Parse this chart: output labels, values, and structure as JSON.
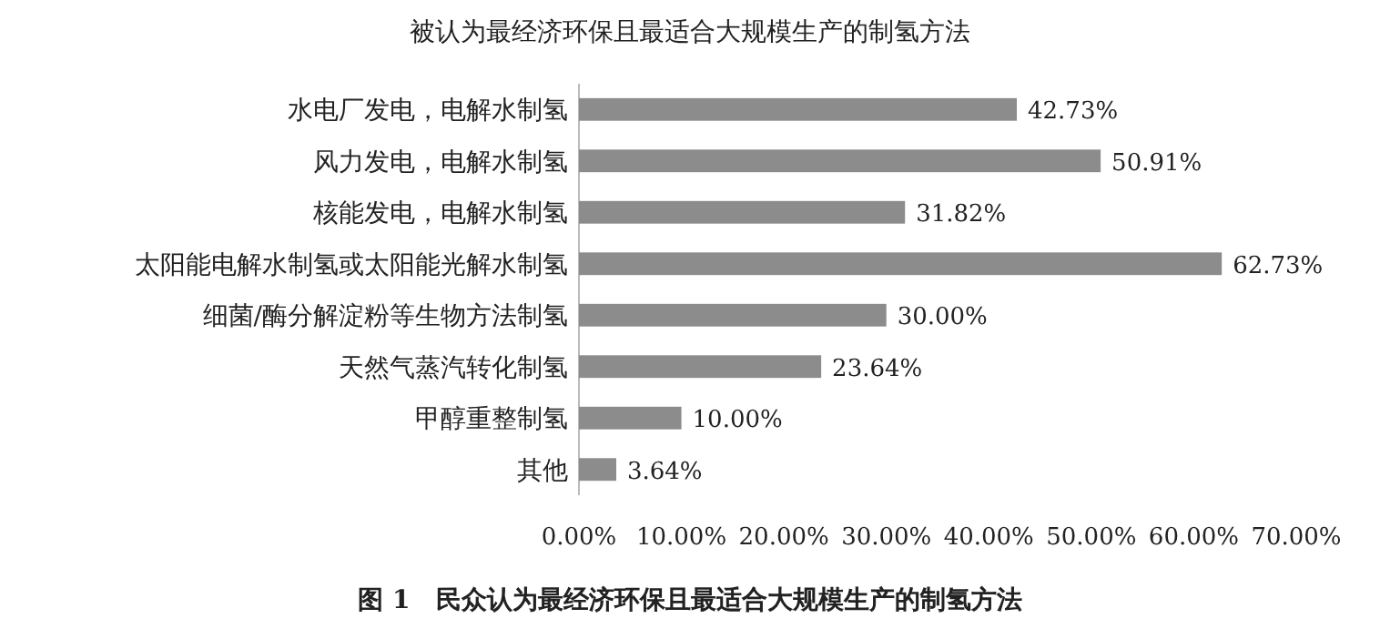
{
  "chart_data": {
    "type": "bar",
    "orientation": "horizontal",
    "title": "被认为最经济环保且最适合大规模生产的制氢方法",
    "categories": [
      "水电厂发电，电解水制氢",
      "风力发电，电解水制氢",
      "核能发电，电解水制氢",
      "太阳能电解水制氢或太阳能光解水制氢",
      "细菌/酶分解淀粉等生物方法制氢",
      "天然气蒸汽转化制氢",
      "甲醇重整制氢",
      "其他"
    ],
    "values": [
      42.73,
      50.91,
      31.82,
      62.73,
      30.0,
      23.64,
      10.0,
      3.64
    ],
    "value_labels": [
      "42.73%",
      "50.91%",
      "31.82%",
      "62.73%",
      "30.00%",
      "23.64%",
      "10.00%",
      "3.64%"
    ],
    "color": "#8c8c8c",
    "xlim": [
      0,
      70
    ],
    "xticks": [
      {
        "value": 0,
        "label": "0.00%"
      },
      {
        "value": 10,
        "label": "10.00%"
      },
      {
        "value": 20,
        "label": "20.00%"
      },
      {
        "value": 30,
        "label": "30.00%"
      },
      {
        "value": 40,
        "label": "40.00%"
      },
      {
        "value": 50,
        "label": "50.00%"
      },
      {
        "value": 60,
        "label": "60.00%"
      },
      {
        "value": 70,
        "label": "70.00%"
      }
    ],
    "annotations": [
      "图 1　民众认为最经济环保且最适合大规模生产的制氢方法"
    ]
  }
}
